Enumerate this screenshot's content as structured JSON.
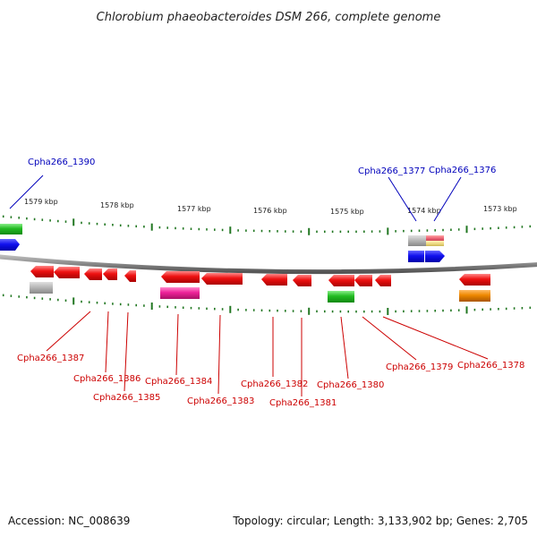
{
  "title": "Chlorobium phaeobacteroides DSM 266, complete genome",
  "footer": {
    "accession": "Accession: NC_008639",
    "summary": "Topology: circular; Length: 3,133,902 bp; Genes: 2,705"
  },
  "scale_labels": [
    "1579 kbp",
    "1578 kbp",
    "1577 kbp",
    "1576 kbp",
    "1575 kbp",
    "1574 kbp",
    "1573 kbp"
  ],
  "gene_labels": {
    "top": [
      "Cpha266_1390",
      "Cpha266_1377",
      "Cpha266_1376"
    ],
    "bottom": [
      "Cpha266_1387",
      "Cpha266_1386",
      "Cpha266_1385",
      "Cpha266_1384",
      "Cpha266_1383",
      "Cpha266_1382",
      "Cpha266_1381",
      "Cpha266_1380",
      "Cpha266_1379",
      "Cpha266_1378"
    ]
  },
  "colors": {
    "red": "#ee1111",
    "blue": "#1111ee",
    "green": "#22bb22",
    "gray": "#b8b8b8",
    "magenta": "#ee2299",
    "orange": "#ee8800",
    "pink": "#ee6677",
    "yellow": "#f0dd88",
    "tick": "#227722",
    "backbone": "#888888",
    "top_label": "#0000bb",
    "bottom_label": "#cc0000"
  }
}
